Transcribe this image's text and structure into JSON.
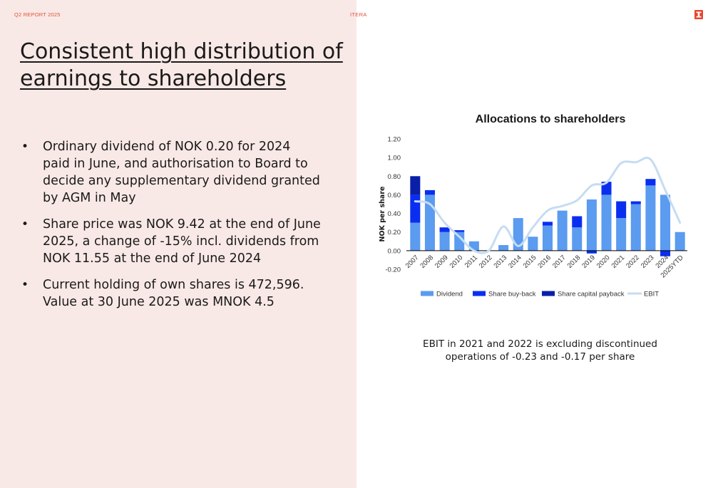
{
  "header": {
    "report_label": "Q2 REPORT 2025",
    "company": "ITERA"
  },
  "colors": {
    "accent": "#e8462f",
    "panel_bg": "#f9e9e6",
    "dividend": "#5b9bf0",
    "buyback": "#0a2ef0",
    "capital_payback": "#0a1fa8",
    "ebit": "#c6dcf2"
  },
  "title": "Consistent high distribution of earnings to shareholders",
  "bullets": [
    "Ordinary dividend of NOK 0.20 for 2024 paid in June, and authorisation to Board to decide any supplementary dividend granted by AGM in May",
    "Share price was NOK 9.42 at the end of June 2025, a change of -15% incl. dividends from NOK 11.55 at the end of June 2024",
    "Current holding of own shares is 472,596. Value at 30 June 2025 was MNOK 4.5"
  ],
  "footnote": "EBIT in 2021 and 2022 is excluding discontinued operations of -0.23 and -0.17 per share",
  "chart_data": {
    "type": "bar",
    "stacked": true,
    "title": "Allocations to shareholders",
    "xlabel": "",
    "ylabel": "NOK per share",
    "ylim": [
      -0.2,
      1.2
    ],
    "yticks": [
      "-0.20",
      "0.00",
      "0.20",
      "0.40",
      "0.60",
      "0.80",
      "1.00",
      "1.20"
    ],
    "grid": false,
    "legend_position": "bottom",
    "categories": [
      "2007",
      "2008",
      "2009",
      "2010",
      "2011",
      "2012",
      "2013",
      "2014",
      "2015",
      "2016",
      "2017",
      "2018",
      "2019",
      "2020",
      "2021",
      "2022",
      "2023",
      "2024",
      "2025YTD"
    ],
    "series": [
      {
        "name": "Dividend",
        "kind": "bar",
        "values": [
          0.3,
          0.6,
          0.2,
          0.2,
          0.1,
          0.0,
          0.06,
          0.35,
          0.15,
          0.27,
          0.43,
          0.25,
          0.55,
          0.6,
          0.35,
          0.5,
          0.7,
          0.6,
          0.2
        ]
      },
      {
        "name": "Share buy-back",
        "kind": "bar",
        "values": [
          0.3,
          0.05,
          0.05,
          0.02,
          0.0,
          0.0,
          0.0,
          0.0,
          0.0,
          0.04,
          0.0,
          0.12,
          -0.03,
          0.14,
          0.18,
          0.03,
          0.07,
          -0.06,
          0.0
        ]
      },
      {
        "name": "Share capital payback",
        "kind": "bar",
        "values": [
          0.2,
          0.0,
          0.0,
          0.0,
          0.0,
          0.0,
          0.0,
          0.0,
          0.0,
          0.0,
          0.0,
          0.0,
          0.0,
          0.0,
          0.0,
          0.0,
          0.0,
          0.0,
          0.0
        ]
      },
      {
        "name": "EBIT",
        "kind": "line",
        "values": [
          0.53,
          0.5,
          0.3,
          0.15,
          0.0,
          0.0,
          0.26,
          0.05,
          0.25,
          0.43,
          0.48,
          0.54,
          0.7,
          0.73,
          0.94,
          0.95,
          0.98,
          0.65,
          0.3
        ]
      }
    ]
  }
}
